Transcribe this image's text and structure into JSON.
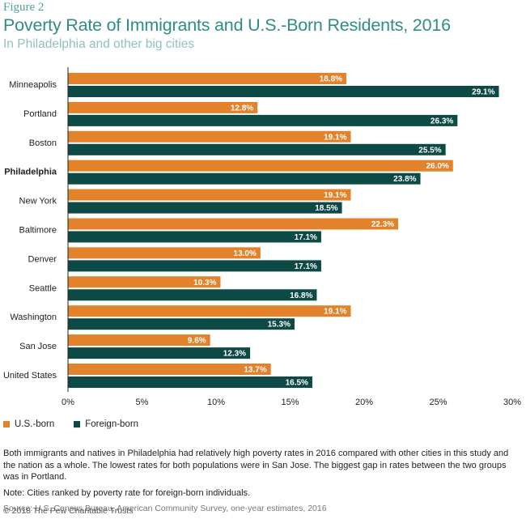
{
  "figure_label": "Figure 2",
  "title": "Poverty Rate of Immigrants and U.S.-Born Residents, 2016",
  "subtitle": "In Philadelphia and other big cities",
  "chart_data": {
    "type": "bar",
    "orientation": "horizontal",
    "categories": [
      "Minneapolis",
      "Portland",
      "Boston",
      "Philadelphia",
      "New York",
      "Baltimore",
      "Denver",
      "Seattle",
      "Washington",
      "San Jose",
      "United States"
    ],
    "highlight_category": "Philadelphia",
    "series": [
      {
        "name": "U.S.-born",
        "color": "#e2832b",
        "values": [
          18.8,
          12.8,
          19.1,
          26.0,
          19.1,
          22.3,
          13.0,
          10.3,
          19.1,
          9.6,
          13.7
        ],
        "labels": [
          "18.8%",
          "12.8%",
          "19.1%",
          "26.0%",
          "19.1%",
          "22.3%",
          "13.0%",
          "10.3%",
          "19.1%",
          "9.6%",
          "13.7%"
        ]
      },
      {
        "name": "Foreign-born",
        "color": "#0d4a45",
        "values": [
          29.1,
          26.3,
          25.5,
          23.8,
          18.5,
          17.1,
          17.1,
          16.8,
          15.3,
          12.3,
          16.5
        ],
        "labels": [
          "29.1%",
          "26.3%",
          "25.5%",
          "23.8%",
          "18.5%",
          "17.1%",
          "17.1%",
          "16.8%",
          "15.3%",
          "12.3%",
          "16.5%"
        ]
      }
    ],
    "xlim": [
      0,
      30
    ],
    "xticks": [
      0,
      5,
      10,
      15,
      20,
      25,
      30
    ],
    "xtick_labels": [
      "0%",
      "5%",
      "10%",
      "15%",
      "20%",
      "25%",
      "30%"
    ],
    "grid": false,
    "legend_position": "bottom-left"
  },
  "notes": {
    "description": "Both immigrants and natives in Philadelphia had relatively high poverty rates in 2016 compared with other cities in this study and the nation as a whole. The lowest rates for both populations were in San Jose. The biggest gap in rates between the two groups was in Portland.",
    "note": "Note: Cities ranked by poverty rate for foreign-born individuals.",
    "source": "Source: U.S. Census Bureau, American Community Survey, one-year estimates, 2016"
  },
  "copyright": "© 2018 The Pew Charitable Trusts"
}
